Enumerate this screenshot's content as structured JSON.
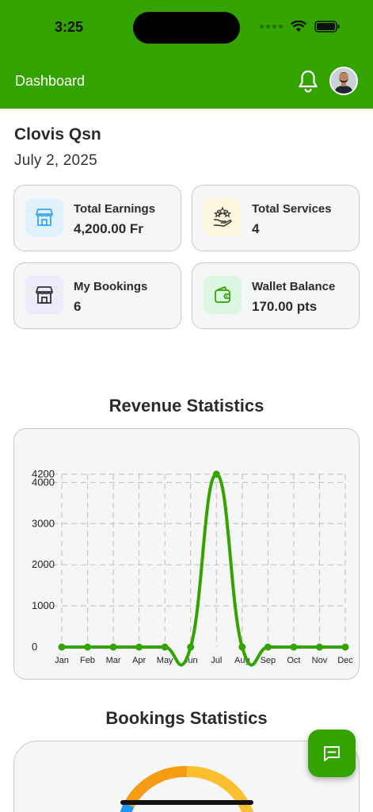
{
  "status_bar": {
    "time": "3:25"
  },
  "header": {
    "title": "Dashboard"
  },
  "user": {
    "name": "Clovis Qsn",
    "date": "July 2, 2025"
  },
  "cards": [
    {
      "label": "Total Earnings",
      "value": "4,200.00 Fr",
      "icon": "store-icon",
      "icon_bg": "#dff1fd",
      "icon_color": "#3aa7e8"
    },
    {
      "label": "Total Services",
      "value": "4",
      "icon": "hand-stars-icon",
      "icon_bg": "#fdf5de",
      "icon_color": "#333333"
    },
    {
      "label": "My Bookings",
      "value": "6",
      "icon": "shop-icon",
      "icon_bg": "#efeaf9",
      "icon_color": "#333333"
    },
    {
      "label": "Wallet Balance",
      "value": "170.00 pts",
      "icon": "wallet-icon",
      "icon_bg": "#dcf7e1",
      "icon_color": "#33a300"
    }
  ],
  "revenue": {
    "title": "Revenue Statistics"
  },
  "bookings": {
    "title": "Bookings Statistics"
  },
  "colors": {
    "brand": "#33a300",
    "line": "#33a300",
    "donut_orange": "#f59c12",
    "donut_yellow": "#fbbf2e",
    "donut_blue": "#2196f3"
  },
  "chart_data": {
    "type": "line",
    "categories": [
      "Jan",
      "Feb",
      "Mar",
      "Apr",
      "May",
      "Jun",
      "Jul",
      "Aug",
      "Sep",
      "Oct",
      "Nov",
      "Dec"
    ],
    "series": [
      {
        "values": [
          0,
          0,
          0,
          0,
          0,
          0,
          4200,
          0,
          0,
          0,
          0,
          0
        ]
      }
    ],
    "y_ticks": [
      0,
      1000,
      2000,
      3000,
      4000,
      4200
    ],
    "ylim": [
      0,
      4200
    ],
    "grid": true,
    "curved": true
  }
}
